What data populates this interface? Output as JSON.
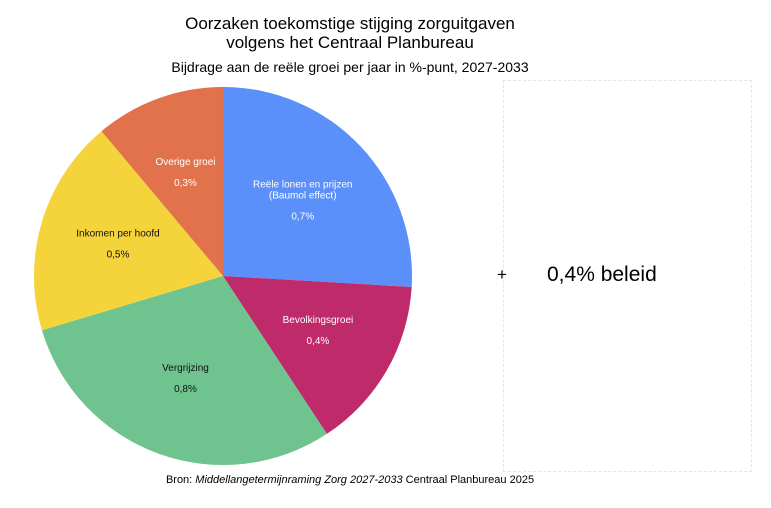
{
  "chart_data": {
    "type": "pie",
    "title_line1": "Oorzaken toekomstige stijging zorguitgaven",
    "title_line2": "volgens het Centraal Planbureau",
    "subtitle": "Bijdrage aan de reële groei per jaar in %-punt, 2027-2033",
    "unit": "%-punt",
    "slices": [
      {
        "label_lines": [
          "Reële lonen en prijzen",
          "(Baumol effect)"
        ],
        "value_label": "0,7%",
        "value": 0.7,
        "color": "#5b8ff9",
        "text_color": "#ffffff"
      },
      {
        "label_lines": [
          "Bevolkingsgroei"
        ],
        "value_label": "0,4%",
        "value": 0.4,
        "color": "#bf2a6a",
        "text_color": "#ffffff"
      },
      {
        "label_lines": [
          "Vergrijzing"
        ],
        "value_label": "0,8%",
        "value": 0.8,
        "color": "#6fc38f",
        "text_color": "#111111"
      },
      {
        "label_lines": [
          "Inkomen per hoofd"
        ],
        "value_label": "0,5%",
        "value": 0.5,
        "color": "#f4d33b",
        "text_color": "#111111"
      },
      {
        "label_lines": [
          "Overige groei"
        ],
        "value_label": "0,3%",
        "value": 0.3,
        "color": "#e2724c",
        "text_color": "#ffffff"
      }
    ],
    "start_angle_deg": 0,
    "direction": "clockwise"
  },
  "annotation": {
    "plus": "+",
    "text": "0,4% beleid"
  },
  "source": {
    "prefix": "Bron: ",
    "publication": "Middellangetermijnraming Zorg 2027-2033",
    "suffix": " Centraal Planbureau 2025"
  }
}
